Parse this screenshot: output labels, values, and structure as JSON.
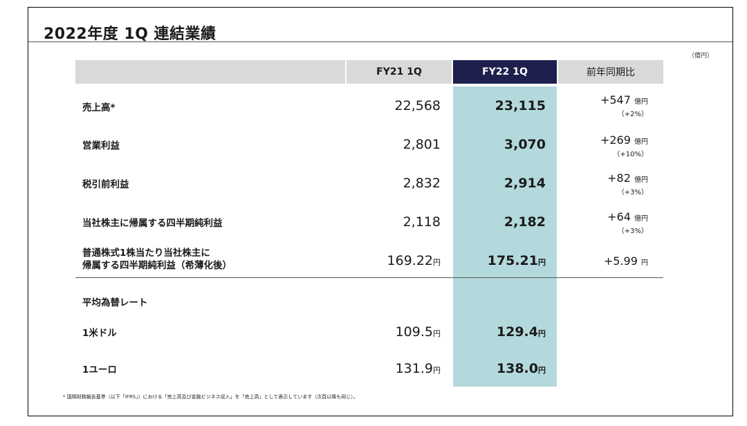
{
  "title": "2022年度 1Q 連結業績",
  "unit_note": "（億円）",
  "headers": {
    "fy21": "FY21 1Q",
    "fy22": "FY22 1Q",
    "yoy": "前年同期比"
  },
  "rows": [
    {
      "label": "売上高*",
      "fy21": "22,568",
      "fy22": "23,115",
      "yoy_value": "+547",
      "yoy_unit": "億円",
      "yoy_pct": "（+2%）"
    },
    {
      "label": "営業利益",
      "fy21": "2,801",
      "fy22": "3,070",
      "yoy_value": "+269",
      "yoy_unit": "億円",
      "yoy_pct": "（+10%）"
    },
    {
      "label": "税引前利益",
      "fy21": "2,832",
      "fy22": "2,914",
      "yoy_value": "+82",
      "yoy_unit": "億円",
      "yoy_pct": "（+3%）"
    },
    {
      "label": "当社株主に帰属する四半期純利益",
      "fy21": "2,118",
      "fy22": "2,182",
      "yoy_value": "+64",
      "yoy_unit": "億円",
      "yoy_pct": "（+3%）"
    },
    {
      "label_line1": "普通株式1株当たり当社株主に",
      "label_line2": "帰属する四半期純利益（希薄化後）",
      "fy21": "169.22",
      "fy21_unit": "円",
      "fy22": "175.21",
      "fy22_unit": "円",
      "yoy_value": "+5.99",
      "yoy_unit": "円"
    }
  ],
  "fx": {
    "heading": "平均為替レート",
    "usd": {
      "label": "1米ドル",
      "fy21": "109.5",
      "fy22": "129.4",
      "unit": "円"
    },
    "eur": {
      "label": "1ユーロ",
      "fy21": "131.9",
      "fy22": "138.0",
      "unit": "円"
    }
  },
  "footnote": "* 国際財務報告基準（以下「IFRS」）における「売上高及び金融ビジネス収入」を「売上高」として表示しています（次頁以降も同じ）。",
  "colors": {
    "header_dark": "#1f1f4e",
    "header_gray": "#d9d9d9",
    "highlight": "#b3d9dd"
  }
}
